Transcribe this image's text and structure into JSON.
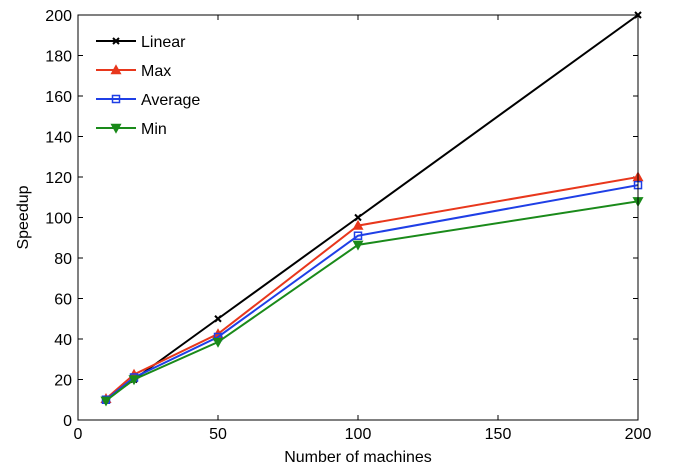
{
  "chart_data": {
    "type": "line",
    "title": "",
    "xlabel": "Number of machines",
    "ylabel": "Speedup",
    "x": [
      10,
      20,
      50,
      100,
      200
    ],
    "x_tick_labels": [
      "0",
      "50",
      "100",
      "150",
      "200"
    ],
    "y_ticks": [
      0,
      20,
      40,
      60,
      80,
      100,
      120,
      140,
      160,
      180,
      200
    ],
    "ylim": [
      0,
      200
    ],
    "grid": false,
    "legend_position": "top-left",
    "series": [
      {
        "name": "Linear",
        "marker": "x",
        "color": "#000000",
        "values": [
          10,
          20,
          50,
          100,
          200
        ]
      },
      {
        "name": "Max",
        "marker": "triangle-up",
        "color": "#e8371c",
        "values": [
          10.5,
          22.5,
          42.5,
          96,
          120
        ]
      },
      {
        "name": "Average",
        "marker": "square",
        "color": "#1f3fe6",
        "values": [
          10,
          21,
          41,
          91,
          116
        ]
      },
      {
        "name": "Min",
        "marker": "triangle-down",
        "color": "#1a8a1a",
        "values": [
          9.5,
          20,
          38.5,
          86.5,
          108
        ]
      }
    ]
  }
}
